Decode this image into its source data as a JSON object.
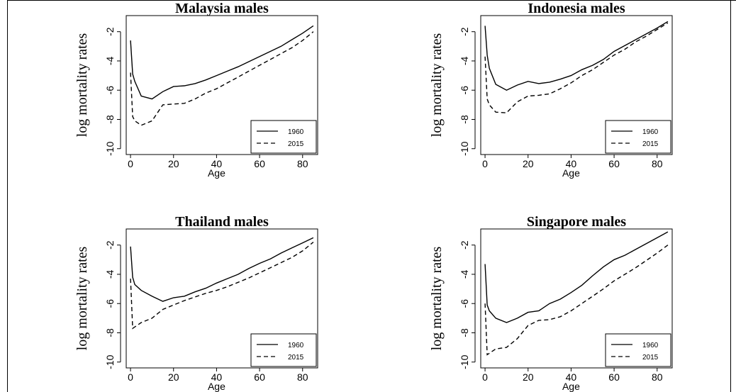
{
  "chart_data": [
    {
      "type": "line",
      "title": "Malaysia males",
      "xlabel": "Age",
      "ylabel": "log mortality rates",
      "xlim": [
        -2,
        87
      ],
      "ylim": [
        -10.4,
        -0.9
      ],
      "xticks": [
        0,
        20,
        40,
        60,
        80
      ],
      "yticks": [
        -2,
        -4,
        -6,
        -8,
        -10
      ],
      "legend_position": "bottom-right",
      "series": [
        {
          "name": "1960",
          "style": "solid",
          "x": [
            0,
            1,
            2,
            5,
            10,
            15,
            20,
            25,
            30,
            35,
            40,
            45,
            50,
            55,
            60,
            65,
            70,
            75,
            80,
            85
          ],
          "y": [
            -2.6,
            -4.9,
            -5.4,
            -6.4,
            -6.6,
            -6.1,
            -5.75,
            -5.7,
            -5.55,
            -5.3,
            -5.0,
            -4.7,
            -4.4,
            -4.05,
            -3.7,
            -3.35,
            -3.0,
            -2.55,
            -2.1,
            -1.6
          ]
        },
        {
          "name": "2015",
          "style": "dashed",
          "x": [
            0,
            1,
            2,
            5,
            10,
            15,
            20,
            25,
            30,
            35,
            40,
            45,
            50,
            55,
            60,
            65,
            70,
            75,
            80,
            85
          ],
          "y": [
            -4.8,
            -7.8,
            -8.1,
            -8.4,
            -8.1,
            -7.0,
            -6.95,
            -6.9,
            -6.6,
            -6.2,
            -5.9,
            -5.5,
            -5.1,
            -4.7,
            -4.3,
            -3.9,
            -3.5,
            -3.1,
            -2.6,
            -2.0
          ]
        }
      ]
    },
    {
      "type": "line",
      "title": "Indonesia males",
      "xlabel": "Age",
      "ylabel": "log mortality rates",
      "xlim": [
        -2,
        87
      ],
      "ylim": [
        -10.4,
        -0.9
      ],
      "xticks": [
        0,
        20,
        40,
        60,
        80
      ],
      "yticks": [
        -2,
        -4,
        -6,
        -8,
        -10
      ],
      "legend_position": "bottom-right",
      "series": [
        {
          "name": "1960",
          "style": "solid",
          "x": [
            0,
            1,
            2,
            5,
            10,
            15,
            20,
            25,
            30,
            35,
            40,
            45,
            50,
            55,
            60,
            65,
            70,
            75,
            80,
            85
          ],
          "y": [
            -1.6,
            -3.6,
            -4.5,
            -5.6,
            -6.0,
            -5.65,
            -5.4,
            -5.55,
            -5.45,
            -5.25,
            -5.0,
            -4.6,
            -4.3,
            -3.9,
            -3.35,
            -2.95,
            -2.55,
            -2.15,
            -1.75,
            -1.3
          ]
        },
        {
          "name": "2015",
          "style": "dashed",
          "x": [
            0,
            1,
            2,
            5,
            10,
            15,
            20,
            25,
            30,
            35,
            40,
            45,
            50,
            55,
            60,
            65,
            70,
            75,
            80,
            85
          ],
          "y": [
            -3.7,
            -6.6,
            -7.0,
            -7.5,
            -7.55,
            -6.8,
            -6.4,
            -6.35,
            -6.25,
            -5.9,
            -5.5,
            -5.0,
            -4.6,
            -4.1,
            -3.6,
            -3.2,
            -2.7,
            -2.3,
            -1.85,
            -1.4
          ]
        }
      ]
    },
    {
      "type": "line",
      "title": "Thailand males",
      "xlabel": "Age",
      "ylabel": "log mortality rates",
      "xlim": [
        -2,
        87
      ],
      "ylim": [
        -10.4,
        -0.9
      ],
      "xticks": [
        0,
        20,
        40,
        60,
        80
      ],
      "yticks": [
        -2,
        -4,
        -6,
        -8,
        -10
      ],
      "legend_position": "bottom-right",
      "series": [
        {
          "name": "1960",
          "style": "solid",
          "x": [
            0,
            1,
            2,
            5,
            10,
            15,
            20,
            25,
            30,
            35,
            40,
            45,
            50,
            55,
            60,
            65,
            70,
            75,
            80,
            85
          ],
          "y": [
            -2.1,
            -4.2,
            -4.7,
            -5.1,
            -5.5,
            -5.85,
            -5.6,
            -5.5,
            -5.2,
            -4.95,
            -4.6,
            -4.3,
            -4.0,
            -3.6,
            -3.25,
            -2.95,
            -2.55,
            -2.2,
            -1.85,
            -1.5
          ]
        },
        {
          "name": "2015",
          "style": "dashed",
          "x": [
            0,
            1,
            2,
            5,
            10,
            15,
            20,
            25,
            30,
            35,
            40,
            45,
            50,
            55,
            60,
            65,
            70,
            75,
            80,
            85
          ],
          "y": [
            -4.3,
            -7.7,
            -7.6,
            -7.3,
            -7.0,
            -6.4,
            -6.1,
            -5.8,
            -5.55,
            -5.3,
            -5.1,
            -4.85,
            -4.55,
            -4.25,
            -3.9,
            -3.55,
            -3.2,
            -2.85,
            -2.4,
            -1.8
          ]
        }
      ]
    },
    {
      "type": "line",
      "title": "Singapore males",
      "xlabel": "Age",
      "ylabel": "log mortality rates",
      "xlim": [
        -2,
        87
      ],
      "ylim": [
        -10.4,
        -0.9
      ],
      "xticks": [
        0,
        20,
        40,
        60,
        80
      ],
      "yticks": [
        -2,
        -4,
        -6,
        -8,
        -10
      ],
      "legend_position": "bottom-right",
      "series": [
        {
          "name": "1960",
          "style": "solid",
          "x": [
            0,
            1,
            2,
            5,
            10,
            15,
            20,
            25,
            30,
            35,
            40,
            45,
            50,
            55,
            60,
            65,
            70,
            75,
            80,
            85
          ],
          "y": [
            -3.3,
            -6.1,
            -6.5,
            -7.0,
            -7.3,
            -7.0,
            -6.6,
            -6.5,
            -6.0,
            -5.7,
            -5.25,
            -4.75,
            -4.1,
            -3.5,
            -3.0,
            -2.7,
            -2.3,
            -1.9,
            -1.5,
            -1.1
          ]
        },
        {
          "name": "2015",
          "style": "dashed",
          "x": [
            0,
            1,
            2,
            5,
            10,
            15,
            20,
            25,
            30,
            35,
            40,
            45,
            50,
            55,
            60,
            65,
            70,
            75,
            80,
            85
          ],
          "y": [
            -6.0,
            -9.5,
            -9.4,
            -9.1,
            -9.0,
            -8.4,
            -7.5,
            -7.15,
            -7.1,
            -6.9,
            -6.5,
            -6.0,
            -5.5,
            -5.0,
            -4.45,
            -4.0,
            -3.55,
            -3.05,
            -2.55,
            -2.0
          ]
        }
      ]
    }
  ]
}
